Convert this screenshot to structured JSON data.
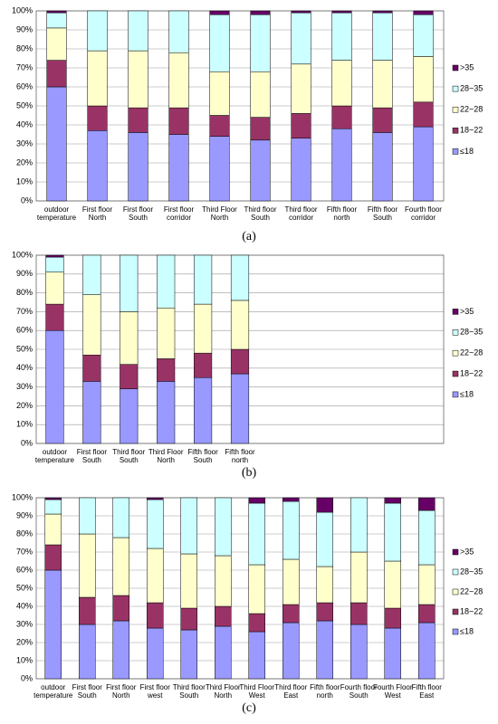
{
  "chart_data": [
    {
      "type": "bar",
      "stacked": true,
      "caption": "(a)",
      "ylim": [
        0,
        100
      ],
      "yticks": [
        {
          "value": 0,
          "label": "0%"
        },
        {
          "value": 10,
          "label": "10%"
        },
        {
          "value": 20,
          "label": "20%"
        },
        {
          "value": 30,
          "label": "30%"
        },
        {
          "value": 40,
          "label": "40%"
        },
        {
          "value": 50,
          "label": "50%"
        },
        {
          "value": 60,
          "label": "60%"
        },
        {
          "value": 70,
          "label": "70%"
        },
        {
          "value": 80,
          "label": "80%"
        },
        {
          "value": 90,
          "label": "90%"
        },
        {
          "value": 100,
          "label": "100%"
        }
      ],
      "grid": true,
      "categories": [
        "outdoor temperature",
        "First floor North",
        "First floor South",
        "First floor corridor",
        "Third Floor North",
        "Third floor South",
        "Third floor corridor",
        "Fifth floor north",
        "Fifth floor South",
        "Fourth floor corridor"
      ],
      "series": [
        {
          "name": "≤18",
          "color": "#9999ff",
          "values": [
            60,
            37,
            36,
            35,
            34,
            32,
            33,
            38,
            36,
            39
          ]
        },
        {
          "name": "18~22",
          "color": "#993366",
          "values": [
            14,
            13,
            13,
            14,
            11,
            12,
            13,
            12,
            13,
            13
          ]
        },
        {
          "name": "22~28",
          "color": "#ffffcc",
          "values": [
            17,
            29,
            30,
            29,
            23,
            24,
            26,
            24,
            25,
            24
          ]
        },
        {
          "name": "28~35",
          "color": "#ccffff",
          "values": [
            8,
            21,
            21,
            22,
            30,
            30,
            27,
            25,
            25,
            22
          ]
        },
        {
          "name": ">35",
          "color": "#660066",
          "values": [
            1,
            0,
            0,
            0,
            2,
            2,
            1,
            1,
            1,
            2
          ]
        }
      ]
    },
    {
      "type": "bar",
      "stacked": true,
      "caption": "(b)",
      "ylim": [
        0,
        100
      ],
      "yticks": [
        {
          "value": 0,
          "label": "0%"
        },
        {
          "value": 10,
          "label": "10%"
        },
        {
          "value": 20,
          "label": "20%"
        },
        {
          "value": 30,
          "label": "30%"
        },
        {
          "value": 40,
          "label": "40%"
        },
        {
          "value": 50,
          "label": "50%"
        },
        {
          "value": 60,
          "label": "60%"
        },
        {
          "value": 70,
          "label": "70%"
        },
        {
          "value": 80,
          "label": "80%"
        },
        {
          "value": 90,
          "label": "90%"
        },
        {
          "value": 100,
          "label": "100%"
        }
      ],
      "grid": true,
      "categories": [
        "outdoor temperature",
        "First floor South",
        "Third floor South",
        "Third Floor North",
        "Fifth floor South",
        "Fifth floor north",
        null,
        null,
        null,
        null,
        null
      ],
      "series": [
        {
          "name": "≤18",
          "color": "#9999ff",
          "values": [
            60,
            33,
            29,
            33,
            35,
            37,
            null,
            null,
            null,
            null,
            null
          ]
        },
        {
          "name": "18~22",
          "color": "#993366",
          "values": [
            14,
            14,
            13,
            12,
            13,
            13,
            null,
            null,
            null,
            null,
            null
          ]
        },
        {
          "name": "22~28",
          "color": "#ffffcc",
          "values": [
            17,
            32,
            28,
            27,
            26,
            26,
            null,
            null,
            null,
            null,
            null
          ]
        },
        {
          "name": "28~35",
          "color": "#ccffff",
          "values": [
            8,
            21,
            30,
            28,
            26,
            24,
            null,
            null,
            null,
            null,
            null
          ]
        },
        {
          "name": ">35",
          "color": "#660066",
          "values": [
            1,
            0,
            0,
            0,
            0,
            0,
            null,
            null,
            null,
            null,
            null
          ]
        }
      ]
    },
    {
      "type": "bar",
      "stacked": true,
      "caption": "(c)",
      "ylim": [
        0,
        100
      ],
      "yticks": [
        {
          "value": 0,
          "label": "0%"
        },
        {
          "value": 10,
          "label": "10%"
        },
        {
          "value": 20,
          "label": "20%"
        },
        {
          "value": 30,
          "label": "30%"
        },
        {
          "value": 40,
          "label": "40%"
        },
        {
          "value": 50,
          "label": "50%"
        },
        {
          "value": 60,
          "label": "60%"
        },
        {
          "value": 70,
          "label": "70%"
        },
        {
          "value": 80,
          "label": "80%"
        },
        {
          "value": 90,
          "label": "90%"
        },
        {
          "value": 100,
          "label": "100%"
        }
      ],
      "grid": true,
      "categories": [
        "outdoor temperature",
        "First floor South",
        "First floor North",
        "First floor west",
        "Third floor South",
        "Third Floor North",
        "Third Floor West",
        "Third floor East",
        "Fifth floor north",
        "Fourth floor South",
        "Fourth Floor West",
        "Fifth floor East"
      ],
      "series": [
        {
          "name": "≤18",
          "color": "#9999ff",
          "values": [
            60,
            30,
            32,
            28,
            27,
            29,
            26,
            31,
            32,
            30,
            28,
            31
          ]
        },
        {
          "name": "18~22",
          "color": "#993366",
          "values": [
            14,
            15,
            14,
            14,
            12,
            11,
            10,
            10,
            10,
            12,
            11,
            10
          ]
        },
        {
          "name": "22~28",
          "color": "#ffffcc",
          "values": [
            17,
            35,
            32,
            30,
            30,
            28,
            27,
            25,
            20,
            28,
            26,
            22
          ]
        },
        {
          "name": "28~35",
          "color": "#ccffff",
          "values": [
            8,
            20,
            22,
            27,
            31,
            32,
            34,
            32,
            30,
            30,
            32,
            30
          ]
        },
        {
          "name": ">35",
          "color": "#660066",
          "values": [
            1,
            0,
            0,
            1,
            0,
            0,
            3,
            2,
            8,
            0,
            3,
            7
          ]
        }
      ]
    }
  ]
}
